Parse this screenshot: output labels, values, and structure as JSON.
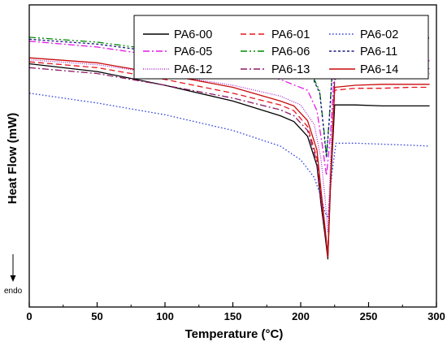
{
  "chart_data": {
    "type": "line",
    "title": "",
    "xlabel": "Temperature (°C)",
    "ylabel": "Heat Flow (mW)",
    "endo_label": "endo",
    "xlim": [
      0,
      300
    ],
    "xticks": [
      0,
      50,
      100,
      150,
      200,
      250,
      300
    ],
    "yticks_shown": false,
    "grid": false,
    "legend": {
      "placement": "top-right",
      "columns": 3
    },
    "series": [
      {
        "name": "PA6-00",
        "color": "#000000",
        "dash": "solid",
        "x": [
          0,
          50,
          100,
          150,
          185,
          195,
          205,
          212,
          215,
          218,
          220,
          222,
          225,
          240,
          260,
          280,
          295
        ],
        "y": [
          -0.4,
          -0.8,
          -1.5,
          -2.3,
          -3.05,
          -3.35,
          -4.1,
          -5.6,
          -7.6,
          -9.2,
          -10.35,
          -6.6,
          -2.5,
          -2.5,
          -2.55,
          -2.55,
          -2.55
        ]
      },
      {
        "name": "PA6-01",
        "color": "#e8141c",
        "dash": "dashed",
        "x": [
          0,
          50,
          100,
          150,
          185,
          195,
          205,
          212,
          215,
          218,
          220,
          222,
          225,
          240,
          260,
          280,
          295
        ],
        "y": [
          -0.3,
          -0.6,
          -1.2,
          -1.9,
          -2.5,
          -2.8,
          -3.6,
          -5.2,
          -7.2,
          -8.9,
          -10.1,
          -6.3,
          -1.75,
          -1.65,
          -1.65,
          -1.6,
          -1.6
        ]
      },
      {
        "name": "PA6-02",
        "color": "#3344dd",
        "dash": "dotted",
        "x": [
          0,
          50,
          100,
          150,
          185,
          200,
          210,
          215,
          218,
          220,
          223,
          226,
          240,
          260,
          280,
          295
        ],
        "y": [
          -1.9,
          -2.4,
          -3.0,
          -3.8,
          -4.6,
          -5.3,
          -6.2,
          -7.2,
          -8.0,
          -8.2,
          -6.0,
          -4.45,
          -4.45,
          -4.5,
          -4.55,
          -4.6
        ]
      },
      {
        "name": "PA6-05",
        "color": "#e619e6",
        "dash": "dashdot",
        "x": [
          0,
          50,
          100,
          150,
          185,
          205,
          212,
          216,
          219,
          222,
          225,
          240,
          260,
          280,
          295
        ],
        "y": [
          0.75,
          0.45,
          -0.05,
          -0.6,
          -1.2,
          -1.75,
          -2.8,
          -4.6,
          -6.1,
          -4.0,
          -0.45,
          -0.25,
          -0.25,
          -0.25,
          -0.25
        ]
      },
      {
        "name": "PA6-06",
        "color": "#008c00",
        "dash": "dashdotdot",
        "x": [
          0,
          50,
          100,
          150,
          190,
          208,
          214,
          217,
          219,
          221,
          224,
          240,
          260,
          280,
          295
        ],
        "y": [
          0.95,
          0.7,
          0.25,
          -0.2,
          -0.5,
          -0.9,
          -1.8,
          -3.7,
          -5.1,
          -3.2,
          0.1,
          0.5,
          0.7,
          0.85,
          0.95
        ]
      },
      {
        "name": "PA6-11",
        "color": "#1a1a80",
        "dash": "shortdash",
        "x": [
          0,
          50,
          100,
          150,
          190,
          208,
          214,
          217,
          219,
          221,
          224,
          240,
          260,
          280,
          295
        ],
        "y": [
          0.85,
          0.6,
          0.15,
          -0.3,
          -0.6,
          -1.0,
          -1.9,
          -3.8,
          -5.2,
          -3.3,
          0.0,
          0.45,
          0.65,
          0.8,
          0.9
        ]
      },
      {
        "name": "PA6-12",
        "color": "#a633cc",
        "dash": "shortdot",
        "x": [
          0,
          50,
          100,
          150,
          185,
          200,
          210,
          215,
          218,
          220,
          222,
          225,
          240,
          260,
          280,
          295
        ],
        "y": [
          -0.2,
          -0.45,
          -0.95,
          -1.5,
          -2.05,
          -2.5,
          -3.5,
          -5.3,
          -7.3,
          -9.0,
          -5.3,
          -0.95,
          -0.8,
          -0.75,
          -0.7,
          -0.65
        ]
      },
      {
        "name": "PA6-13",
        "color": "#8c1a66",
        "dash": "dashdot",
        "x": [
          0,
          50,
          100,
          150,
          185,
          195,
          205,
          212,
          215,
          218,
          220,
          222,
          225,
          240,
          260,
          280,
          295
        ],
        "y": [
          -0.6,
          -0.9,
          -1.5,
          -2.15,
          -2.75,
          -3.05,
          -3.8,
          -5.4,
          -7.4,
          -9.0,
          -10.2,
          -6.3,
          -1.2,
          -1.05,
          -1.0,
          -0.95,
          -0.9
        ]
      },
      {
        "name": "PA6-14",
        "color": "#c80a0a",
        "dash": "solid",
        "x": [
          0,
          50,
          100,
          150,
          185,
          195,
          205,
          212,
          215,
          218,
          220,
          222,
          225,
          240,
          260,
          280,
          295
        ],
        "y": [
          -0.1,
          -0.35,
          -0.95,
          -1.6,
          -2.3,
          -2.55,
          -3.3,
          -4.8,
          -6.9,
          -8.8,
          -10.25,
          -6.4,
          -1.6,
          -1.5,
          -1.45,
          -1.45,
          -1.45
        ]
      }
    ]
  }
}
